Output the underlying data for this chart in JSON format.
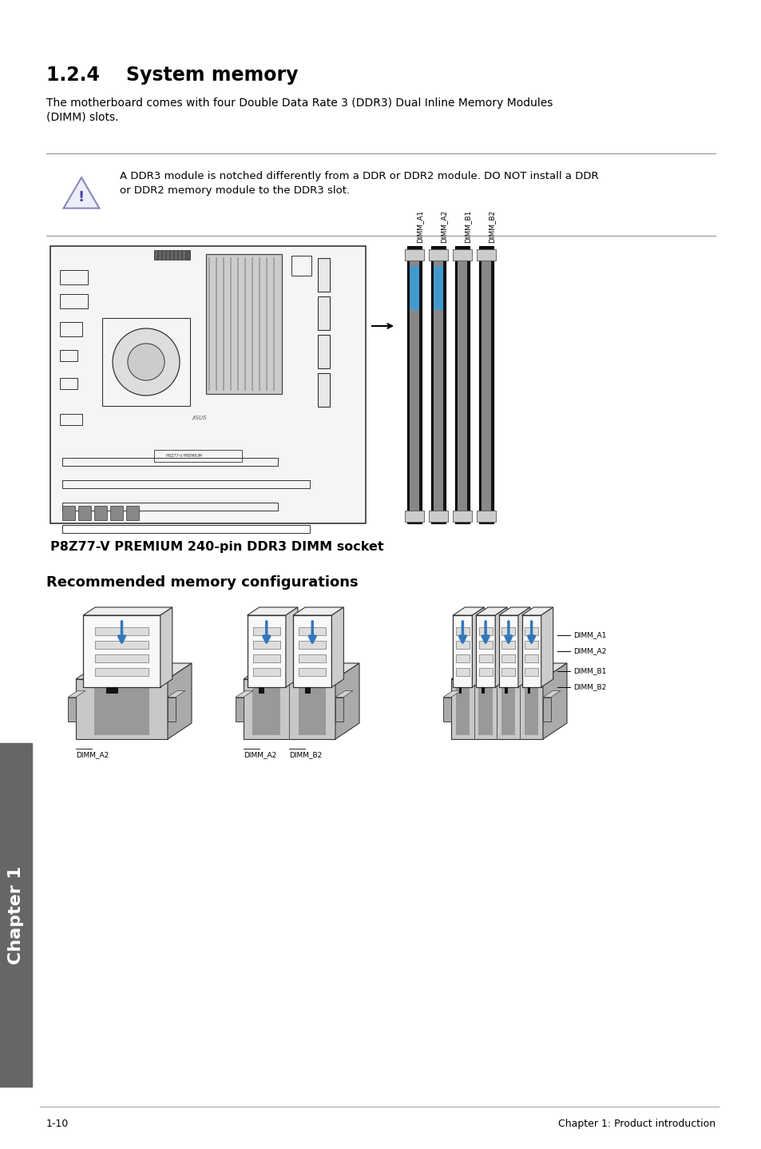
{
  "bg_color": "#ffffff",
  "title": "1.2.4    System memory",
  "body_text1": "The motherboard comes with four Double Data Rate 3 (DDR3) Dual Inline Memory Modules",
  "body_text2": "(DIMM) slots.",
  "warning_text1": "A DDR3 module is notched differently from a DDR or DDR2 module. DO NOT install a DDR",
  "warning_text2": "or DDR2 memory module to the DDR3 slot.",
  "diagram_caption": "P8Z77-V PREMIUM 240-pin DDR3 DIMM socket",
  "section2_title": "Recommended memory configurations",
  "footer_left": "1-10",
  "footer_right": "Chapter 1: Product introduction",
  "sidebar_text": "Chapter 1",
  "sidebar_bg": "#666666",
  "dimm_labels": [
    "DIMM_A1",
    "DIMM_A2",
    "DIMM_B1",
    "DIMM_B2"
  ],
  "config1_label": "DIMM_A2",
  "config2_labels": [
    "DIMM_A2",
    "DIMM_B2"
  ],
  "config3_labels": [
    "DIMM_A1",
    "DIMM_A2",
    "DIMM_B1",
    "DIMM_B2"
  ],
  "mb_outline_color": "#333333",
  "mb_fill_color": "#f5f5f5",
  "dimm_slot_dark": "#333333",
  "dimm_slot_light": "#888888",
  "dimm_blue": "#4499cc",
  "iso_slot_fill": "#cccccc",
  "iso_slot_dark": "#444444",
  "iso_mod_fill": "#f0f0f0",
  "iso_mod_dark": "#222222",
  "iso_blue": "#3377bb"
}
